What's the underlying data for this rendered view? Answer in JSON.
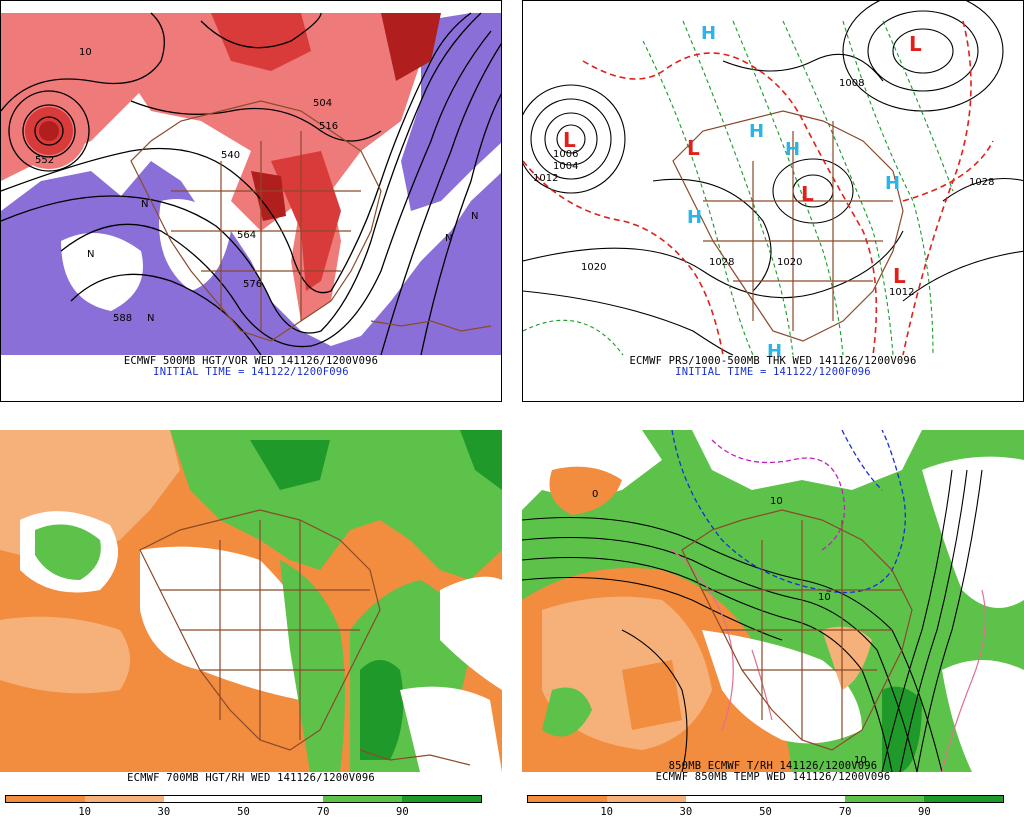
{
  "panels": {
    "top_left": {
      "caption": "ECMWF 500MB HGT/VOR WED 141126/1200V096",
      "init": "INITIAL TIME = 141122/1200F096",
      "contour_labels": [
        "552",
        "564",
        "576",
        "588",
        "540",
        "504",
        "516",
        "10"
      ],
      "n_labels": [
        "N",
        "N",
        "N",
        "N",
        "N"
      ],
      "colors": {
        "vort_high": "#d93a3a",
        "vort_mid": "#ee7a7a",
        "vort_low": "#f7b8b8",
        "vort_neg": "#8a6fd8",
        "land": "#8b4a2b"
      }
    },
    "top_right": {
      "caption": "ECMWF PRS/1000-500MB THK WED 141126/1200V096",
      "init": "INITIAL TIME = 141122/1200F096",
      "isobar_labels": [
        "1004",
        "1012",
        "1020",
        "1028",
        "1020",
        "1008",
        "1012",
        "1028",
        "1006"
      ],
      "highs": [
        "H",
        "H",
        "H",
        "H",
        "H",
        "H"
      ],
      "lows": [
        "L",
        "L",
        "L",
        "L",
        "L"
      ],
      "colors": {
        "high": "#2ab5e8",
        "low": "#e0201a",
        "thick_warm": "#e0201a",
        "thick_cold": "#1a9a2a"
      }
    },
    "bottom_left": {
      "caption": "ECMWF 700MB HGT/RH WED 141126/1200V096",
      "colorbar": {
        "ticks": [
          "10",
          "30",
          "50",
          "70",
          "90"
        ],
        "colors": [
          "#f28c3e",
          "#f6b07a",
          "#ffffff",
          "#ffffff",
          "#5cc24a",
          "#1f9a2a"
        ]
      }
    },
    "bottom_right": {
      "caption1": "850MB ECMWF T/RH 141126/1200V096",
      "caption2": "ECMWF 850MB TEMP WED 141126/1200V096",
      "contour_labels": [
        "10",
        "10",
        "0",
        "10"
      ],
      "colorbar": {
        "ticks": [
          "10",
          "30",
          "50",
          "70",
          "90"
        ],
        "colors": [
          "#f28c3e",
          "#f6b07a",
          "#ffffff",
          "#ffffff",
          "#5cc24a",
          "#1f9a2a"
        ]
      }
    }
  }
}
